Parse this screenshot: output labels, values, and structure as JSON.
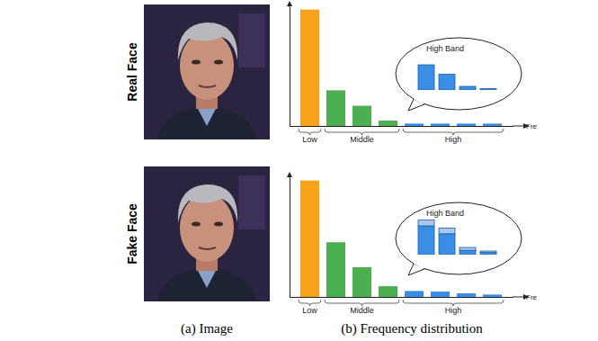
{
  "row_labels": [
    "Real Face",
    "Fake Face"
  ],
  "captions": [
    "(a) Image",
    "(b) Frequency distribution"
  ],
  "chart_data": [
    {
      "type": "bar",
      "categories": [
        null,
        null,
        null,
        null,
        null,
        null,
        null,
        null
      ],
      "values": [
        98,
        30,
        17,
        4.5,
        2,
        2,
        2,
        2
      ],
      "colors": [
        "#f7a21b",
        "#4caf50",
        "#4caf50",
        "#4caf50",
        "#3a8ee6",
        "#3a8ee6",
        "#3a8ee6",
        "#3a8ee6"
      ],
      "ylim": [
        0,
        100
      ],
      "tick_labels": false,
      "xlabel": "Fre",
      "bands": [
        {
          "label": "Low",
          "count": 1
        },
        {
          "label": "Middle",
          "count": 3
        },
        {
          "label": "High",
          "count": 4
        }
      ],
      "inset": {
        "type": "bar",
        "title": "High Band",
        "stacked": true,
        "categories": [
          null,
          null,
          null,
          null
        ],
        "ylim": [
          0,
          50
        ],
        "tick_labels": false,
        "series": [
          {
            "color": "#3a8ee6",
            "values": [
              35,
              22,
              5,
              2
            ]
          }
        ]
      }
    },
    {
      "type": "bar",
      "categories": [
        null,
        null,
        null,
        null,
        null,
        null,
        null,
        null
      ],
      "values": [
        98,
        46,
        25,
        9,
        5,
        4.5,
        3,
        2
      ],
      "colors": [
        "#f7a21b",
        "#4caf50",
        "#4caf50",
        "#4caf50",
        "#3a8ee6",
        "#3a8ee6",
        "#3a8ee6",
        "#3a8ee6"
      ],
      "ylim": [
        0,
        100
      ],
      "tick_labels": false,
      "xlabel": "Fre",
      "bands": [
        {
          "label": "Low",
          "count": 1
        },
        {
          "label": "Middle",
          "count": 3
        },
        {
          "label": "High",
          "count": 4
        }
      ],
      "inset": {
        "type": "bar",
        "title": "High Band",
        "stacked": true,
        "categories": [
          null,
          null,
          null,
          null
        ],
        "ylim": [
          0,
          50
        ],
        "tick_labels": false,
        "series": [
          {
            "color": "#3a8ee6",
            "values": [
              40,
              29,
              6,
              3
            ]
          },
          {
            "color": "#a9c8ee",
            "values": [
              8,
              8,
              4,
              2
            ]
          }
        ]
      }
    }
  ]
}
